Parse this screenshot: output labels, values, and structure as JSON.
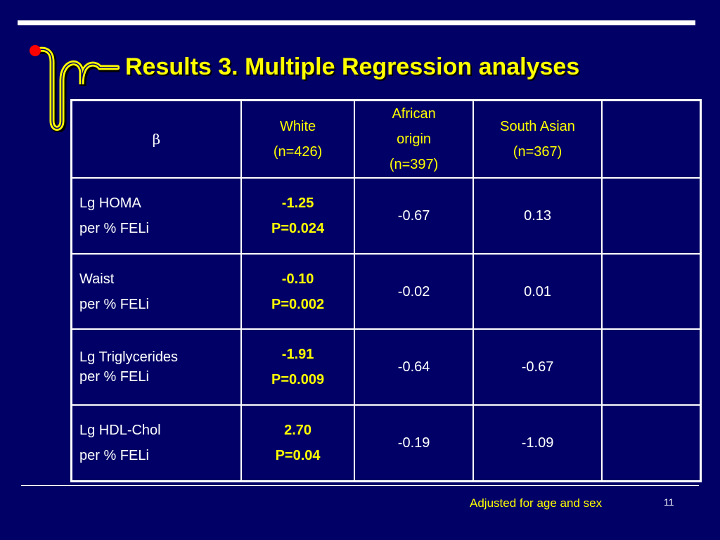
{
  "slide": {
    "title": "Results 3. Multiple Regression analyses",
    "footnote": "Adjusted for age and sex",
    "page_number": "11"
  },
  "table": {
    "headers": {
      "beta": "β",
      "white": [
        "White",
        "(n=426)"
      ],
      "african": [
        "African",
        "origin",
        "(n=397)"
      ],
      "south_asian": [
        "South Asian",
        "(n=367)"
      ],
      "extra": ""
    },
    "rows": [
      {
        "label": [
          "Lg HOMA",
          "per % FELi"
        ],
        "white": [
          "-1.25",
          "P=0.024"
        ],
        "african": "-0.67",
        "south_asian": "0.13",
        "extra": ""
      },
      {
        "label": [
          "Waist",
          "per % FELi"
        ],
        "white": [
          "-0.10",
          "P=0.002"
        ],
        "african": "-0.02",
        "south_asian": "0.01",
        "extra": ""
      },
      {
        "label": [
          "Lg Triglycerides",
          "per % FELi"
        ],
        "white": [
          "-1.91",
          "P=0.009"
        ],
        "african": "-0.64",
        "south_asian": "-0.67",
        "extra": ""
      },
      {
        "label": [
          "Lg HDL-Chol",
          "per % FELi"
        ],
        "white": [
          "2.70",
          "P=0.04"
        ],
        "african": "-0.19",
        "south_asian": "-1.09",
        "extra": ""
      }
    ]
  },
  "colors": {
    "background": "#000066",
    "title": "#ffff00",
    "highlight": "#ffff00",
    "text": "#ffffff",
    "logo_dot": "#ff0000"
  },
  "icons": {
    "logo": "tube-logo-icon"
  }
}
